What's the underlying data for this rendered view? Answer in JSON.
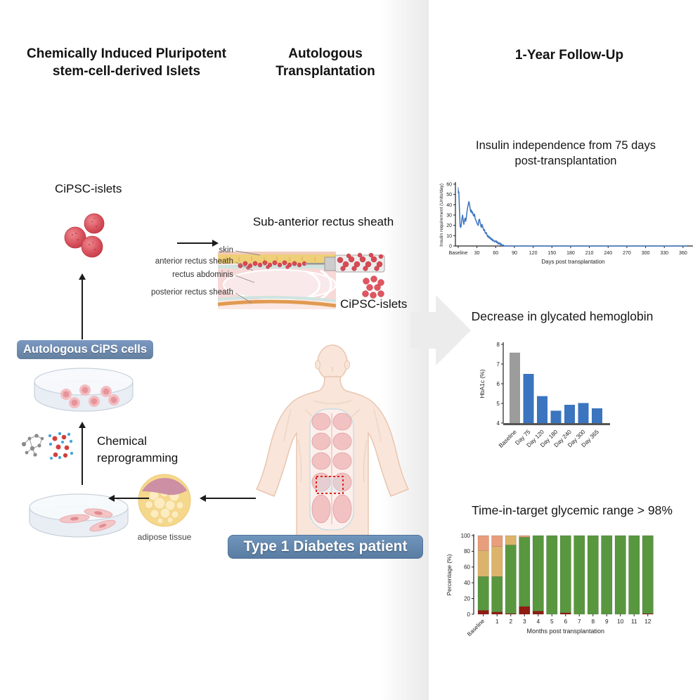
{
  "panels": {
    "left": {
      "title": "Chemically Induced Pluripotent\nstem-cell-derived Islets",
      "cipsc_islets_label": "CiPSC-islets",
      "cips_badge": "Autologous CiPS cells",
      "chemical_label": "Chemical\nreprogramming",
      "adipose_label": "adipose tissue"
    },
    "middle": {
      "title": "Autologous\nTransplantation",
      "site_label": "Sub-anterior rectus sheath",
      "tissue_layers": [
        "skin",
        "anterior rectus sheath",
        "rectus abdominis",
        "posterior rectus sheath"
      ],
      "islets_label": "CiPSC-islets",
      "patient_badge": "Type 1 Diabetes patient"
    },
    "right": {
      "title": "1-Year Follow-Up"
    }
  },
  "colors": {
    "divider_band": "#eaeaea",
    "flow_arrow": "#ececec",
    "badge_blue": "#6a8cb5",
    "islet_red": "#d94e59",
    "line_blue": "#3b74bf",
    "bar_gray": "#9c9c9c",
    "tir_green": "#59973f",
    "tir_tan": "#dcb36a",
    "tir_salmon": "#e89d7c",
    "tir_dark_red": "#8f1d12",
    "skin_tone": "#f9e5d9",
    "adipose_yellow": "#f6d88c"
  },
  "chart_data": [
    {
      "type": "line",
      "title": "Insulin independence from 75 days\npost-transplantation",
      "xlabel": "Days post transplantation",
      "ylabel": "Insulin requirement (Units/day)",
      "ylim": [
        0,
        60
      ],
      "yticks": [
        0,
        10,
        20,
        30,
        40,
        50,
        60
      ],
      "xticks": {
        "values": [
          0,
          30,
          60,
          90,
          120,
          150,
          180,
          210,
          240,
          270,
          300,
          330,
          360
        ],
        "labels": [
          "Baseline",
          "30",
          "60",
          "90",
          "120",
          "150",
          "180",
          "210",
          "240",
          "270",
          "300",
          "330",
          "360"
        ]
      },
      "line_color": "#3b74bf",
      "baseline_error": [
        51,
        57
      ],
      "points": [
        [
          0,
          54
        ],
        [
          1,
          52
        ],
        [
          2,
          34
        ],
        [
          3,
          19
        ],
        [
          4,
          18
        ],
        [
          5,
          21
        ],
        [
          6,
          27
        ],
        [
          7,
          30
        ],
        [
          8,
          25
        ],
        [
          9,
          21
        ],
        [
          10,
          25
        ],
        [
          11,
          27
        ],
        [
          12,
          24
        ],
        [
          13,
          28
        ],
        [
          14,
          33
        ],
        [
          15,
          37
        ],
        [
          16,
          40
        ],
        [
          17,
          43
        ],
        [
          18,
          41
        ],
        [
          19,
          36
        ],
        [
          20,
          33
        ],
        [
          21,
          35
        ],
        [
          22,
          32
        ],
        [
          23,
          33
        ],
        [
          24,
          30
        ],
        [
          25,
          29
        ],
        [
          26,
          31
        ],
        [
          27,
          27
        ],
        [
          28,
          25
        ],
        [
          29,
          24
        ],
        [
          30,
          22
        ],
        [
          31,
          21
        ],
        [
          32,
          20
        ],
        [
          33,
          25
        ],
        [
          34,
          26
        ],
        [
          35,
          23
        ],
        [
          36,
          20
        ],
        [
          37,
          18
        ],
        [
          38,
          21
        ],
        [
          39,
          19
        ],
        [
          40,
          17
        ],
        [
          41,
          15
        ],
        [
          42,
          16
        ],
        [
          43,
          13
        ],
        [
          44,
          12
        ],
        [
          45,
          13
        ],
        [
          46,
          11
        ],
        [
          47,
          9
        ],
        [
          48,
          10
        ],
        [
          49,
          8
        ],
        [
          50,
          9
        ],
        [
          51,
          7
        ],
        [
          52,
          8
        ],
        [
          53,
          6
        ],
        [
          54,
          7
        ],
        [
          55,
          5
        ],
        [
          56,
          6
        ],
        [
          57,
          5
        ],
        [
          58,
          4
        ],
        [
          59,
          5
        ],
        [
          60,
          4
        ],
        [
          61,
          5
        ],
        [
          62,
          3
        ],
        [
          63,
          4
        ],
        [
          64,
          2
        ],
        [
          65,
          3
        ],
        [
          66,
          2
        ],
        [
          67,
          3
        ],
        [
          68,
          1
        ],
        [
          69,
          2
        ],
        [
          70,
          1
        ],
        [
          71,
          0.5
        ],
        [
          72,
          1
        ],
        [
          73,
          0.5
        ],
        [
          74,
          0
        ],
        [
          80,
          0
        ],
        [
          90,
          0
        ],
        [
          105,
          0
        ],
        [
          120,
          0
        ],
        [
          135,
          0
        ],
        [
          150,
          0
        ],
        [
          165,
          0
        ],
        [
          180,
          0
        ],
        [
          195,
          0
        ],
        [
          210,
          0
        ],
        [
          225,
          0
        ],
        [
          240,
          0
        ],
        [
          255,
          0
        ],
        [
          270,
          0
        ],
        [
          285,
          0
        ],
        [
          300,
          0
        ],
        [
          315,
          0
        ],
        [
          330,
          0
        ],
        [
          345,
          0
        ],
        [
          365,
          0
        ]
      ]
    },
    {
      "type": "bar",
      "title": "Decrease in glycated hemoglobin",
      "ylabel": "HbA1c (%)",
      "ylim": [
        4,
        8
      ],
      "yticks": [
        4,
        5,
        6,
        7,
        8
      ],
      "categories": [
        "Baseline",
        "Day 75",
        "Day 120",
        "Day 180",
        "Day 240",
        "Day 300",
        "Day 365"
      ],
      "values": [
        7.58,
        6.5,
        5.37,
        4.63,
        4.93,
        5.02,
        4.75
      ],
      "bar_colors": [
        "#9c9c9c",
        "#3b74bf",
        "#3b74bf",
        "#3b74bf",
        "#3b74bf",
        "#3b74bf",
        "#3b74bf"
      ]
    },
    {
      "type": "stacked-bar",
      "title": "Time-in-target glycemic range > 98%",
      "xlabel": "Months post transplantation",
      "ylabel": "Percentage (%)",
      "ylim": [
        0,
        100
      ],
      "yticks": [
        0,
        20,
        40,
        60,
        80,
        100
      ],
      "categories": [
        "Baseline",
        "1",
        "2",
        "3",
        "4",
        "5",
        "6",
        "7",
        "8",
        "9",
        "10",
        "11",
        "12"
      ],
      "series": [
        {
          "name": "dark-red",
          "color": "#8f1d12",
          "values": [
            5,
            3,
            1,
            10,
            4,
            0,
            2,
            0,
            0,
            0,
            0,
            0,
            1
          ]
        },
        {
          "name": "green",
          "color": "#59973f",
          "values": [
            43,
            45,
            87,
            88,
            96,
            100,
            98,
            100,
            100,
            100,
            100,
            100,
            99
          ]
        },
        {
          "name": "tan",
          "color": "#dcb36a",
          "values": [
            33,
            38,
            12,
            0,
            0,
            0,
            0,
            0,
            0,
            0,
            0,
            0,
            0
          ]
        },
        {
          "name": "salmon",
          "color": "#e89d7c",
          "values": [
            19,
            14,
            0,
            2,
            0,
            0,
            0,
            0,
            0,
            0,
            0,
            0,
            0
          ]
        }
      ]
    }
  ]
}
